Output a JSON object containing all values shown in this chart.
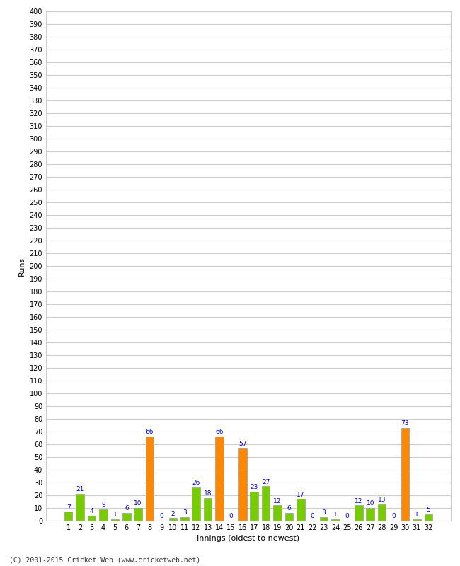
{
  "title": "",
  "xlabel": "Innings (oldest to newest)",
  "ylabel": "Runs",
  "values": [
    7,
    21,
    4,
    9,
    1,
    6,
    10,
    66,
    0,
    2,
    3,
    26,
    18,
    66,
    0,
    57,
    23,
    27,
    12,
    6,
    17,
    0,
    3,
    1,
    0,
    12,
    10,
    13,
    0,
    73,
    1,
    5
  ],
  "colors": [
    "#77cc00",
    "#77cc00",
    "#77cc00",
    "#77cc00",
    "#77cc00",
    "#77cc00",
    "#77cc00",
    "#ff8800",
    "#77cc00",
    "#77cc00",
    "#77cc00",
    "#77cc00",
    "#77cc00",
    "#ff8800",
    "#77cc00",
    "#ff8800",
    "#77cc00",
    "#77cc00",
    "#77cc00",
    "#77cc00",
    "#77cc00",
    "#77cc00",
    "#77cc00",
    "#77cc00",
    "#77cc00",
    "#77cc00",
    "#77cc00",
    "#77cc00",
    "#77cc00",
    "#ff8800",
    "#77cc00",
    "#77cc00"
  ],
  "labels": [
    "1",
    "2",
    "3",
    "4",
    "5",
    "6",
    "7",
    "8",
    "9",
    "10",
    "11",
    "12",
    "13",
    "14",
    "15",
    "16",
    "17",
    "18",
    "19",
    "20",
    "21",
    "22",
    "23",
    "24",
    "25",
    "26",
    "27",
    "28",
    "29",
    "30",
    "31",
    "32"
  ],
  "ylim": [
    0,
    400
  ],
  "ytick_step": 10,
  "ytick_label_step": 10,
  "grid_color": "#cccccc",
  "background_color": "#ffffff",
  "bar_edge_color": "#999999",
  "label_color": "#0000cc",
  "copyright": "(C) 2001-2015 Cricket Web (www.cricketweb.net)"
}
